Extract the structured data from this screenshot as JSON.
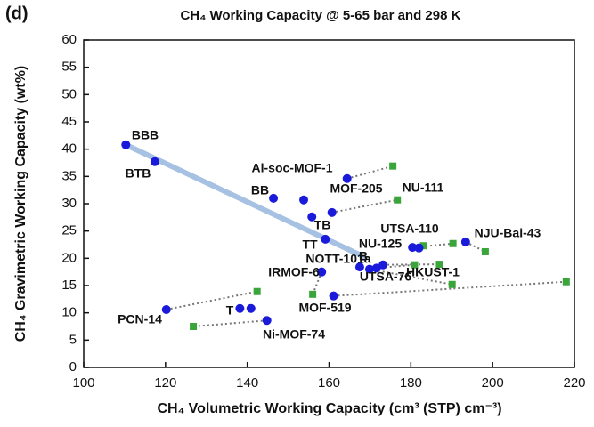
{
  "chart_data": {
    "type": "scatter",
    "panel": "(d)",
    "title": "CH₄ Working Capacity @ 5-65 bar and 298 K",
    "xlabel": "CH₄ Volumetric Working Capacity (cm³ (STP) cm⁻³)",
    "ylabel": "CH₄ Gravimetric Working Capacity (wt%)",
    "xlim": [
      100,
      220
    ],
    "xticks": [
      100,
      120,
      140,
      160,
      180,
      200,
      220
    ],
    "ylim": [
      0,
      60
    ],
    "yticks": [
      0,
      5,
      10,
      15,
      20,
      25,
      30,
      35,
      40,
      45,
      50,
      55,
      60
    ],
    "point_labels": [
      "BBB",
      "BTB",
      "Al-soc-MOF-1",
      "BB",
      "MOF-205",
      "NU-111",
      "TB",
      "TT",
      "UTSA-110",
      "NU-125",
      "NJU-Bai-43",
      "B",
      "NOTT-101a",
      "HKUST-1",
      "UTSA-76",
      "IRMOF-6",
      "MOF-519",
      "PCN-14",
      "T",
      null,
      "Ni-MOF-74"
    ],
    "series": [
      {
        "color": "#1a1adb",
        "x": [
          110.3,
          117.4,
          164.4,
          146.4,
          153.8,
          160.7,
          155.8,
          159.1,
          180.4,
          182.0,
          193.4,
          167.5,
          171.6,
          173.2,
          169.9,
          158.2,
          161.1,
          120.2,
          138.2,
          140.9,
          144.8
        ],
        "values": [
          40.8,
          37.7,
          34.6,
          31.0,
          30.7,
          28.4,
          27.6,
          23.5,
          22.0,
          21.9,
          23.0,
          18.4,
          18.2,
          18.8,
          18.0,
          17.5,
          13.1,
          10.6,
          10.8,
          10.8,
          8.6
        ]
      },
      {
        "color": "#3aa53a",
        "x": [
          null,
          null,
          175.6,
          null,
          null,
          176.7,
          null,
          null,
          190.3,
          183.1,
          198.2,
          null,
          180.9,
          187.0,
          190.1,
          156.0,
          218.0,
          142.4,
          null,
          null,
          126.8
        ],
        "values": [
          null,
          null,
          36.9,
          null,
          null,
          30.7,
          null,
          null,
          22.7,
          22.3,
          21.2,
          null,
          18.8,
          18.9,
          15.2,
          13.4,
          15.7,
          13.9,
          null,
          null,
          7.5
        ]
      }
    ],
    "trend": {
      "color": "#a7c1e3",
      "x": [
        110.3,
        168.5
      ],
      "values": [
        40.8,
        20.3
      ]
    }
  }
}
